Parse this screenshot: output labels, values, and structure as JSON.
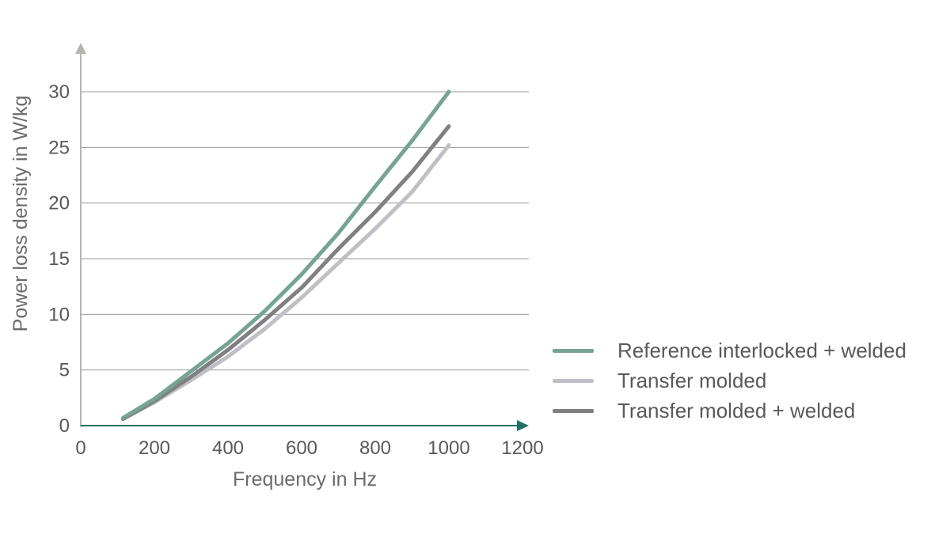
{
  "chart_data": {
    "type": "line",
    "xlabel": "Frequency in Hz",
    "ylabel": "Power loss density in W/kg",
    "xlim": [
      0,
      1200
    ],
    "ylim": [
      0,
      30
    ],
    "x_ticks": [
      "0",
      "200",
      "400",
      "600",
      "800",
      "1000",
      "1200"
    ],
    "y_ticks": [
      "0",
      "5",
      "10",
      "15",
      "20",
      "25",
      "30"
    ],
    "grid": "horizontal",
    "legend_position": "right",
    "x": [
      115,
      200,
      300,
      400,
      500,
      600,
      700,
      800,
      900,
      1000
    ],
    "series": [
      {
        "name": "Reference interlocked + welded",
        "color": "#77a393",
        "values": [
          0.7,
          2.4,
          4.9,
          7.4,
          10.3,
          13.6,
          17.3,
          21.5,
          25.6,
          30.0
        ]
      },
      {
        "name": "Transfer molded",
        "color": "#bfbfc6",
        "values": [
          0.6,
          2.1,
          4.1,
          6.2,
          8.7,
          11.5,
          14.6,
          17.7,
          21.0,
          25.2
        ]
      },
      {
        "name": "Transfer molded + welded",
        "color": "#808080",
        "values": [
          0.6,
          2.2,
          4.4,
          6.8,
          9.5,
          12.4,
          15.9,
          19.2,
          22.8,
          26.9
        ]
      }
    ]
  }
}
